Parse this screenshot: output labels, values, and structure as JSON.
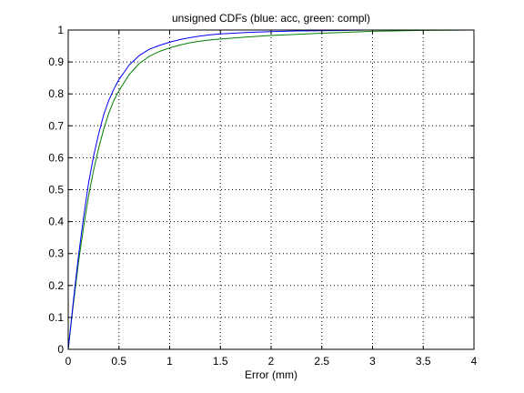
{
  "chart_data": {
    "type": "line",
    "title": "unsigned CDFs (blue: acc, green: compl)",
    "xlabel": "Error (mm)",
    "ylabel": "",
    "xlim": [
      0,
      4
    ],
    "ylim": [
      0,
      1
    ],
    "xticks": [
      0,
      0.5,
      1,
      1.5,
      2,
      2.5,
      3,
      3.5,
      4
    ],
    "xtick_labels": [
      "0",
      "0.5",
      "1",
      "1.5",
      "2",
      "2.5",
      "3",
      "3.5",
      "4"
    ],
    "yticks": [
      0,
      0.1,
      0.2,
      0.3,
      0.4,
      0.5,
      0.6,
      0.7,
      0.8,
      0.9,
      1
    ],
    "ytick_labels": [
      "0",
      "0.1",
      "0.2",
      "0.3",
      "0.4",
      "0.5",
      "0.6",
      "0.7",
      "0.8",
      "0.9",
      "1"
    ],
    "grid": true,
    "series": [
      {
        "color": "#0000ff",
        "x": [
          0,
          0.05,
          0.1,
          0.15,
          0.2,
          0.25,
          0.3,
          0.35,
          0.4,
          0.45,
          0.5,
          0.6,
          0.7,
          0.8,
          0.9,
          1.0,
          1.1,
          1.2,
          1.3,
          1.4,
          1.5,
          1.75,
          2.0,
          2.25,
          2.5,
          2.75,
          2.95
        ],
        "y": [
          0.0,
          0.15,
          0.29,
          0.41,
          0.52,
          0.605,
          0.675,
          0.735,
          0.78,
          0.815,
          0.845,
          0.89,
          0.92,
          0.94,
          0.952,
          0.962,
          0.97,
          0.976,
          0.981,
          0.985,
          0.988,
          0.992,
          0.995,
          0.997,
          0.998,
          0.999,
          1.0
        ]
      },
      {
        "color": "#008000",
        "x": [
          0,
          0.05,
          0.1,
          0.15,
          0.2,
          0.25,
          0.3,
          0.35,
          0.4,
          0.45,
          0.5,
          0.6,
          0.7,
          0.8,
          0.9,
          1.0,
          1.1,
          1.2,
          1.3,
          1.4,
          1.5,
          1.75,
          2.0,
          2.5,
          3.0,
          3.5,
          4.0
        ],
        "y": [
          0.0,
          0.14,
          0.27,
          0.38,
          0.48,
          0.56,
          0.63,
          0.69,
          0.74,
          0.78,
          0.81,
          0.86,
          0.895,
          0.918,
          0.933,
          0.944,
          0.953,
          0.96,
          0.965,
          0.969,
          0.972,
          0.978,
          0.983,
          0.99,
          0.996,
          0.999,
          1.0
        ]
      }
    ]
  }
}
